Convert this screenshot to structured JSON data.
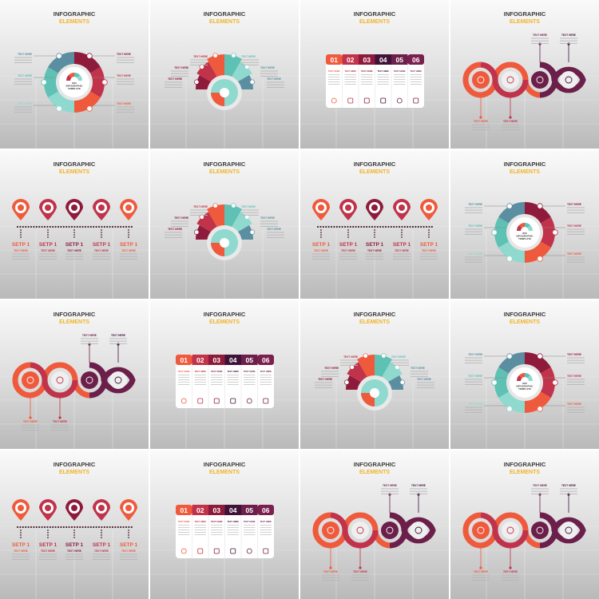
{
  "title_line1": "INFOGRAPHIC",
  "title_line2": "ELEMENTS",
  "label": "TEXT HERE",
  "step_label": "SETP 1",
  "center_text": [
    "2019",
    "INFOGRAPHIC",
    "TEMPLATE"
  ],
  "numbers": [
    "01",
    "02",
    "03",
    "04",
    "05",
    "06"
  ],
  "colors": {
    "title": "#3a3a3a",
    "subtitle": "#f0b429",
    "coral": "#ef5a3c",
    "red": "#c0334a",
    "crimson": "#8e1b3c",
    "plum": "#6b1f4a",
    "purple": "#3f1238",
    "teal": "#5fc1b4",
    "light_teal": "#8fd9ce",
    "blue_grey": "#5a8ea0"
  },
  "table_icons": [
    "gem-icon",
    "bell-icon",
    "bag-icon",
    "image-icon",
    "clock-icon",
    "tablet-icon"
  ],
  "tiles": [
    {
      "type": "donut"
    },
    {
      "type": "semicircle"
    },
    {
      "type": "table"
    },
    {
      "type": "wave"
    },
    {
      "type": "pins"
    },
    {
      "type": "semicircle"
    },
    {
      "type": "pins"
    },
    {
      "type": "donut"
    },
    {
      "type": "wave"
    },
    {
      "type": "table"
    },
    {
      "type": "semicircle"
    },
    {
      "type": "donut"
    },
    {
      "type": "pins"
    },
    {
      "type": "table"
    },
    {
      "type": "wave"
    },
    {
      "type": "wave"
    }
  ]
}
